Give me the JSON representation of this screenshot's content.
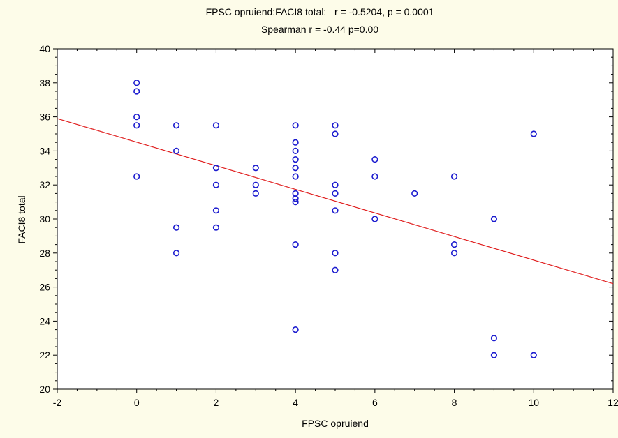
{
  "chart_data": {
    "type": "scatter",
    "title": "FPSC opruiend:FACI8 total:   r = -0.5204, p = 0.0001",
    "subtitle": "Spearman r = -0.44 p=0.00",
    "xlabel": "FPSC opruiend",
    "ylabel": "FACI8 total",
    "xlim": [
      -2,
      12
    ],
    "ylim": [
      20,
      40
    ],
    "x_ticks": [
      -2,
      0,
      2,
      4,
      6,
      8,
      10,
      12
    ],
    "y_ticks": [
      20,
      22,
      24,
      26,
      28,
      30,
      32,
      34,
      36,
      38,
      40
    ],
    "grid": false,
    "colors": {
      "points": "#1c1ccf",
      "regression": "#e01f1f",
      "background": "#fdfce9",
      "plot_area": "#ffffff"
    },
    "points": [
      {
        "x": 0,
        "y": 38
      },
      {
        "x": 0,
        "y": 37.5
      },
      {
        "x": 0,
        "y": 36
      },
      {
        "x": 0,
        "y": 35.5
      },
      {
        "x": 0,
        "y": 32.5
      },
      {
        "x": 1,
        "y": 35.5
      },
      {
        "x": 1,
        "y": 34
      },
      {
        "x": 1,
        "y": 29.5
      },
      {
        "x": 1,
        "y": 28
      },
      {
        "x": 2,
        "y": 35.5
      },
      {
        "x": 2,
        "y": 33
      },
      {
        "x": 2,
        "y": 32
      },
      {
        "x": 2,
        "y": 30.5
      },
      {
        "x": 2,
        "y": 29.5
      },
      {
        "x": 3,
        "y": 33
      },
      {
        "x": 3,
        "y": 32
      },
      {
        "x": 3,
        "y": 31.5
      },
      {
        "x": 4,
        "y": 35.5
      },
      {
        "x": 4,
        "y": 34.5
      },
      {
        "x": 4,
        "y": 34
      },
      {
        "x": 4,
        "y": 33.5
      },
      {
        "x": 4,
        "y": 33
      },
      {
        "x": 4,
        "y": 32.5
      },
      {
        "x": 4,
        "y": 31.5
      },
      {
        "x": 4,
        "y": 31.2
      },
      {
        "x": 4,
        "y": 31
      },
      {
        "x": 4,
        "y": 28.5
      },
      {
        "x": 4,
        "y": 23.5
      },
      {
        "x": 5,
        "y": 35.5
      },
      {
        "x": 5,
        "y": 35
      },
      {
        "x": 5,
        "y": 32
      },
      {
        "x": 5,
        "y": 31.5
      },
      {
        "x": 5,
        "y": 30.5
      },
      {
        "x": 5,
        "y": 28
      },
      {
        "x": 5,
        "y": 27
      },
      {
        "x": 6,
        "y": 33.5
      },
      {
        "x": 6,
        "y": 32.5
      },
      {
        "x": 6,
        "y": 30
      },
      {
        "x": 7,
        "y": 31.5
      },
      {
        "x": 8,
        "y": 32.5
      },
      {
        "x": 8,
        "y": 28.5
      },
      {
        "x": 8,
        "y": 28
      },
      {
        "x": 9,
        "y": 30
      },
      {
        "x": 9,
        "y": 23
      },
      {
        "x": 9,
        "y": 22
      },
      {
        "x": 10,
        "y": 35
      },
      {
        "x": 10,
        "y": 22
      }
    ],
    "regression_line": {
      "x": [
        -2,
        12
      ],
      "y": [
        35.9,
        26.2
      ]
    }
  }
}
